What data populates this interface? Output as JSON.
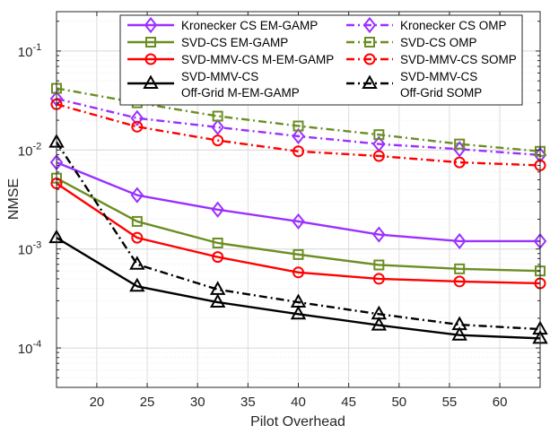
{
  "chart_data": {
    "type": "line",
    "xlabel": "Pilot Overhead",
    "ylabel": "NMSE",
    "x_ticks": [
      20,
      25,
      30,
      35,
      40,
      45,
      50,
      55,
      60
    ],
    "xlim": [
      16,
      64
    ],
    "ylim": [
      4e-05,
      0.25
    ],
    "y_scale": "log",
    "y_ticks": [
      {
        "value": 0.1,
        "base": "10",
        "exp": "-1"
      },
      {
        "value": 0.01,
        "base": "10",
        "exp": "-2"
      },
      {
        "value": 0.001,
        "base": "10",
        "exp": "-3"
      },
      {
        "value": 0.0001,
        "base": "10",
        "exp": "-4"
      }
    ],
    "grid": true,
    "legend_position": "top",
    "x": [
      16,
      24,
      32,
      40,
      48,
      56,
      64
    ],
    "series": [
      {
        "name": "Kronecker CS EM-GAMP",
        "lines": [
          "Kronecker CS EM-GAMP"
        ],
        "color": "#9b30ff",
        "dash": "solid",
        "marker": "diamond",
        "values": [
          0.0075,
          0.0035,
          0.0025,
          0.0019,
          0.0014,
          0.0012,
          0.0012
        ]
      },
      {
        "name": "Kronecker CS OMP",
        "lines": [
          "Kronecker CS OMP"
        ],
        "color": "#9b30ff",
        "dash": "dashdot",
        "marker": "diamond",
        "values": [
          0.033,
          0.021,
          0.017,
          0.0138,
          0.0115,
          0.0102,
          0.0089
        ]
      },
      {
        "name": "SVD-CS EM-GAMP",
        "lines": [
          "SVD-CS EM-GAMP"
        ],
        "color": "#6b8e23",
        "dash": "solid",
        "marker": "square",
        "values": [
          0.0052,
          0.0019,
          0.00115,
          0.00088,
          0.00069,
          0.00063,
          0.0006
        ]
      },
      {
        "name": "SVD-CS OMP",
        "lines": [
          "SVD-CS OMP"
        ],
        "color": "#6b8e23",
        "dash": "dashdot",
        "marker": "square",
        "values": [
          0.042,
          0.03,
          0.022,
          0.0175,
          0.0143,
          0.0115,
          0.0097
        ]
      },
      {
        "name": "SVD-MMV-CS M-EM-GAMP",
        "lines": [
          "SVD-MMV-CS M-EM-GAMP"
        ],
        "color": "#ff0000",
        "dash": "solid",
        "marker": "circle",
        "values": [
          0.0046,
          0.0013,
          0.00083,
          0.00058,
          0.0005,
          0.00047,
          0.00045
        ]
      },
      {
        "name": "SVD-MMV-CS SOMP",
        "lines": [
          "SVD-MMV-CS SOMP"
        ],
        "color": "#ff0000",
        "dash": "dashdot",
        "marker": "circle",
        "values": [
          0.029,
          0.0172,
          0.0125,
          0.0097,
          0.0087,
          0.0075,
          0.007
        ]
      },
      {
        "name": "SVD-MMV-CS Off-Grid M-EM-GAMP",
        "lines": [
          "SVD-MMV-CS",
          "Off-Grid M-EM-GAMP"
        ],
        "color": "#000000",
        "dash": "solid",
        "marker": "triangle",
        "values": [
          0.0013,
          0.00042,
          0.00029,
          0.00022,
          0.00017,
          0.000135,
          0.000125
        ]
      },
      {
        "name": "SVD-MMV-CS Off-Grid SOMP",
        "lines": [
          "SVD-MMV-CS",
          "Off-Grid SOMP"
        ],
        "color": "#000000",
        "dash": "dashdot",
        "marker": "triangle",
        "values": [
          0.012,
          0.0007,
          0.00039,
          0.00029,
          0.00022,
          0.000172,
          0.000155
        ]
      }
    ]
  }
}
